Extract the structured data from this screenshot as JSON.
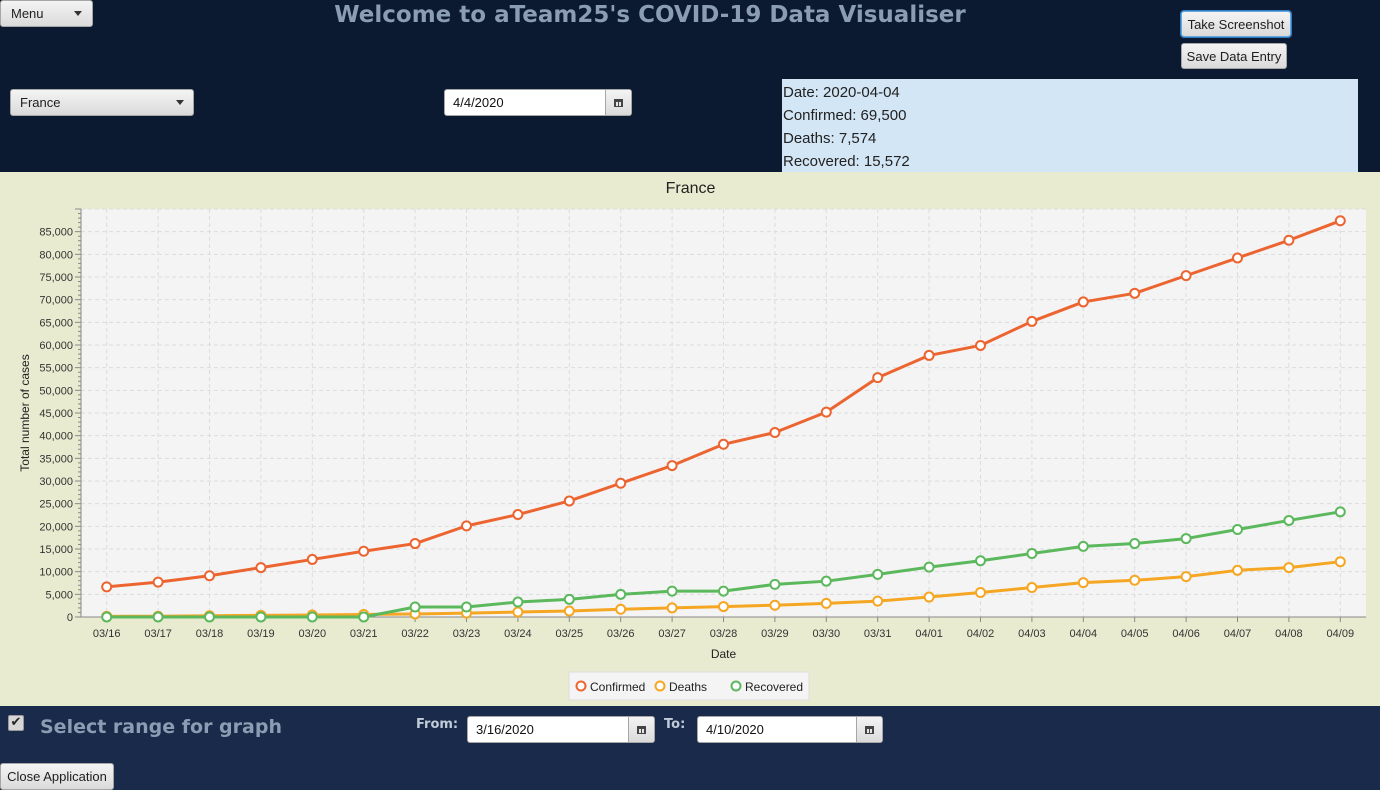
{
  "window": {
    "title": "Welcome to aTeam25's COVID-19 Data Visualiser"
  },
  "menu": {
    "label": "Menu"
  },
  "toolbar": {
    "screenshot_label": "Take Screenshot",
    "save_label": "Save Data Entry"
  },
  "country_select": {
    "value": "France"
  },
  "date_picker": {
    "value": "4/4/2020"
  },
  "info": {
    "date": "Date: 2020-04-04",
    "confirmed": "Confirmed: 69,500",
    "deaths": "Deaths: 7,574",
    "recovered": "Recovered: 15,572"
  },
  "range": {
    "checked": true,
    "label": "Select range for graph",
    "from_label": "From:",
    "from_value": "3/16/2020",
    "to_label": "To:",
    "to_value": "4/10/2020"
  },
  "footer": {
    "close_label": "Close Application"
  },
  "colors": {
    "confirmed": "#ec6430",
    "deaths": "#f5a623",
    "recovered": "#5cb85c",
    "plot_bg": "#f4f4f4",
    "chart_bg": "#e9ebd0"
  },
  "chart_data": {
    "type": "line",
    "title": "France",
    "xlabel": "Date",
    "ylabel": "Total number of cases",
    "ylim": [
      0,
      90000
    ],
    "grid": true,
    "legend_position": "bottom",
    "yticks": [
      "0",
      "5,000",
      "10,000",
      "15,000",
      "20,000",
      "25,000",
      "30,000",
      "35,000",
      "40,000",
      "45,000",
      "50,000",
      "55,000",
      "60,000",
      "65,000",
      "70,000",
      "75,000",
      "80,000",
      "85,000"
    ],
    "categories": [
      "03/16",
      "03/17",
      "03/18",
      "03/19",
      "03/20",
      "03/21",
      "03/22",
      "03/23",
      "03/24",
      "03/25",
      "03/26",
      "03/27",
      "03/28",
      "03/29",
      "03/30",
      "03/31",
      "04/01",
      "04/02",
      "04/03",
      "04/04",
      "04/05",
      "04/06",
      "04/07",
      "04/08",
      "04/09"
    ],
    "series": [
      {
        "name": "Confirmed",
        "color": "#ec6430",
        "values": [
          6650,
          7700,
          9100,
          10900,
          12700,
          14500,
          16200,
          20100,
          22600,
          25600,
          29500,
          33400,
          38100,
          40700,
          45200,
          52800,
          57700,
          59900,
          65200,
          69500,
          71400,
          75300,
          79200,
          83100,
          87400
        ]
      },
      {
        "name": "Deaths",
        "color": "#f5a623",
        "values": [
          150,
          175,
          265,
          370,
          450,
          560,
          675,
          860,
          1100,
          1330,
          1700,
          2000,
          2300,
          2600,
          3000,
          3500,
          4400,
          5400,
          6500,
          7574,
          8100,
          8900,
          10300,
          10900,
          12200
        ]
      },
      {
        "name": "Recovered",
        "color": "#5cb85c",
        "values": [
          10,
          12,
          12,
          12,
          12,
          12,
          2200,
          2200,
          3300,
          3900,
          5000,
          5700,
          5700,
          7200,
          7900,
          9400,
          11000,
          12400,
          14000,
          15572,
          16200,
          17300,
          19300,
          21300,
          23200
        ]
      }
    ]
  }
}
